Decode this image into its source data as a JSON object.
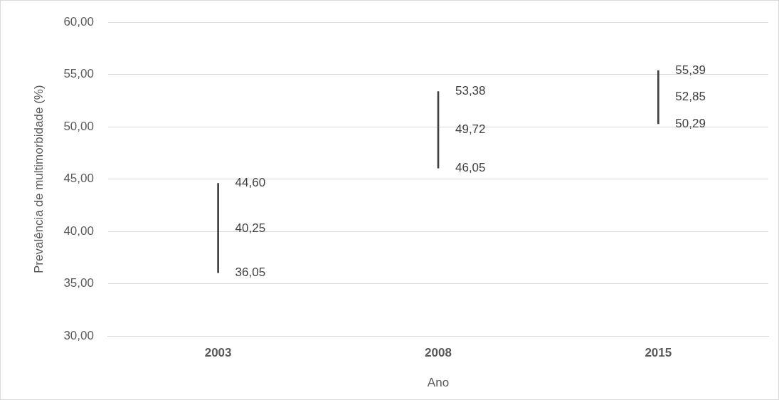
{
  "chart_data": {
    "type": "bar",
    "xlabel": "Ano",
    "ylabel": "Prevalência de multimorbidade (%)",
    "categories": [
      "2003",
      "2008",
      "2015"
    ],
    "base": [
      36.05,
      46.05,
      50.29
    ],
    "values": [
      8.55,
      7.33,
      5.1
    ],
    "color": "#404040",
    "legend": false,
    "grid": "y",
    "ylim": [
      30,
      60
    ],
    "yticks": [
      {
        "value": 30,
        "label": "30,00"
      },
      {
        "value": 35,
        "label": "35,00"
      },
      {
        "value": 40,
        "label": "40,00"
      },
      {
        "value": 45,
        "label": "45,00"
      },
      {
        "value": 50,
        "label": "50,00"
      },
      {
        "value": 55,
        "label": "55,00"
      },
      {
        "value": 60,
        "label": "60,00"
      }
    ],
    "annotations": [
      {
        "text": "44,60",
        "x": "2003",
        "y": 44.6
      },
      {
        "text": "40,25",
        "x": "2003",
        "y": 40.25
      },
      {
        "text": "36,05",
        "x": "2003",
        "y": 36.05
      },
      {
        "text": "53,38",
        "x": "2008",
        "y": 53.38
      },
      {
        "text": "49,72",
        "x": "2008",
        "y": 49.72
      },
      {
        "text": "46,05",
        "x": "2008",
        "y": 46.05
      },
      {
        "text": "55,39",
        "x": "2015",
        "y": 55.39
      },
      {
        "text": "52,85",
        "x": "2015",
        "y": 52.85
      },
      {
        "text": "50,29",
        "x": "2015",
        "y": 50.29
      }
    ]
  }
}
